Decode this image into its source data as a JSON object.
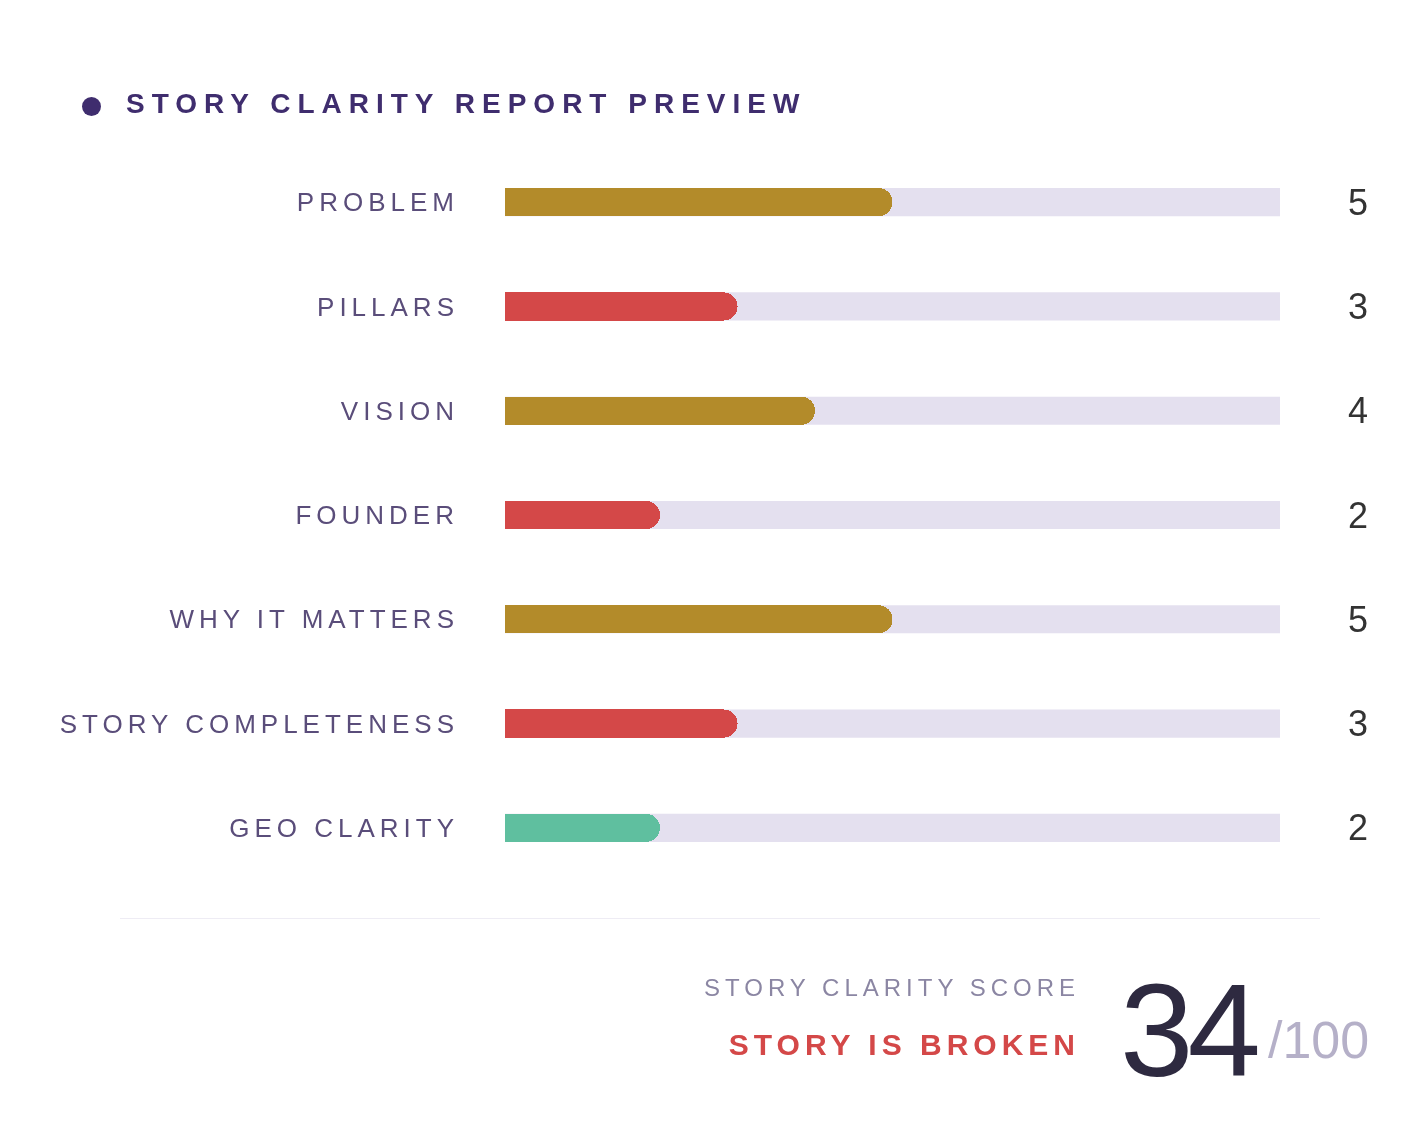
{
  "chart_data": {
    "type": "bar",
    "orientation": "horizontal",
    "title": "STORY CLARITY REPORT PREVIEW",
    "categories": [
      "PROBLEM",
      "PILLARS",
      "VISION",
      "FOUNDER",
      "WHY IT MATTERS",
      "STORY COMPLETENESS",
      "GEO CLARITY"
    ],
    "values": [
      5,
      3,
      4,
      2,
      5,
      3,
      2
    ],
    "colors": [
      "#b38b2a",
      "#d44848",
      "#b38b2a",
      "#d44848",
      "#b38b2a",
      "#d44848",
      "#5fbf9f"
    ],
    "xlim": [
      0,
      10
    ],
    "tick_labels": "y",
    "grid": false,
    "data_labels": true,
    "annotations": [
      "STORY CLARITY SCORE",
      "STORY IS BROKEN",
      "34",
      "/100"
    ]
  }
}
